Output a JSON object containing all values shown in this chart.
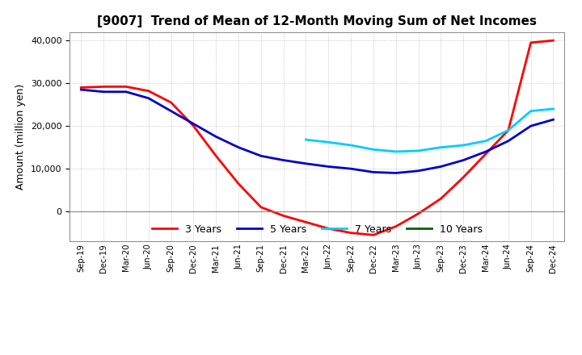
{
  "title": "[9007]  Trend of Mean of 12-Month Moving Sum of Net Incomes",
  "ylabel": "Amount (million yen)",
  "x_labels": [
    "Sep-19",
    "Dec-19",
    "Mar-20",
    "Jun-20",
    "Sep-20",
    "Dec-20",
    "Mar-21",
    "Jun-21",
    "Sep-21",
    "Dec-21",
    "Mar-22",
    "Jun-22",
    "Sep-22",
    "Dec-22",
    "Mar-23",
    "Jun-23",
    "Sep-23",
    "Dec-23",
    "Mar-24",
    "Jun-24",
    "Sep-24",
    "Dec-24"
  ],
  "ylim": [
    -7000,
    42000
  ],
  "yticks": [
    0,
    10000,
    20000,
    30000,
    40000
  ],
  "series": {
    "3 Years": {
      "color": "#FF0000",
      "data_x": [
        0,
        1,
        2,
        3,
        4,
        5,
        6,
        7,
        8,
        9,
        10,
        11,
        12,
        13,
        14,
        15,
        16,
        17,
        18,
        19,
        20,
        21
      ],
      "data_y": [
        29000,
        29200,
        29200,
        28200,
        25500,
        20000,
        13000,
        6500,
        1000,
        -1000,
        -2500,
        -4000,
        -5000,
        -5500,
        -3500,
        -500,
        3000,
        8000,
        13500,
        19000,
        39500,
        40000
      ]
    },
    "5 Years": {
      "color": "#0000CC",
      "data_x": [
        0,
        1,
        2,
        3,
        4,
        5,
        6,
        7,
        8,
        9,
        10,
        11,
        12,
        13,
        14,
        15,
        16,
        17,
        18,
        19,
        20,
        21
      ],
      "data_y": [
        28500,
        28000,
        28000,
        26500,
        23500,
        20500,
        17500,
        15000,
        13000,
        12000,
        11200,
        10500,
        10000,
        9200,
        9000,
        9500,
        10500,
        12000,
        14000,
        16500,
        20000,
        21500
      ]
    },
    "7 Years": {
      "color": "#00CCFF",
      "data_x": [
        10,
        11,
        12,
        13,
        14,
        15,
        16,
        17,
        18,
        19,
        20,
        21
      ],
      "data_y": [
        16800,
        16200,
        15500,
        14500,
        14000,
        14200,
        15000,
        15500,
        16500,
        19000,
        23500,
        24000
      ]
    },
    "10 Years": {
      "color": "#006600",
      "data_x": [],
      "data_y": []
    }
  },
  "legend_labels": [
    "3 Years",
    "5 Years",
    "7 Years",
    "10 Years"
  ],
  "legend_colors": [
    "#FF0000",
    "#0000CC",
    "#00CCFF",
    "#006600"
  ],
  "background_color": "#FFFFFF",
  "grid_color": "#999999"
}
